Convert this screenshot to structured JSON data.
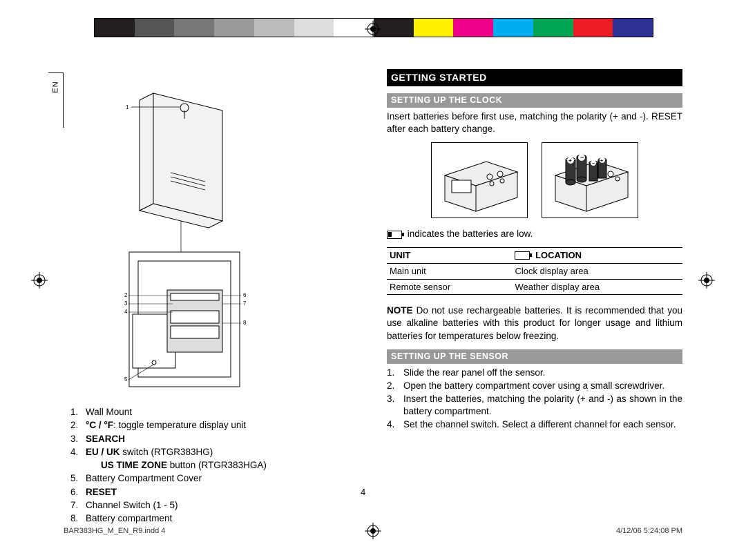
{
  "meta": {
    "lang_tab": "EN",
    "page_number": "4",
    "footer_file": "BAR383HG_M_EN_R9.indd   4",
    "footer_date": "4/12/06   5:24:08 PM"
  },
  "color_bar": [
    "#231f20",
    "#555555",
    "#777777",
    "#999999",
    "#bbbbbb",
    "#dddddd",
    "#ffffff",
    "#231f20",
    "#fff200",
    "#ec008c",
    "#00aeef",
    "#00a651",
    "#ed1c24",
    "#2e3192"
  ],
  "left": {
    "diagram_labels": [
      "1",
      "2",
      "3",
      "4",
      "5",
      "6",
      "7",
      "8"
    ],
    "parts": [
      {
        "n": "1.",
        "text": "Wall Mount",
        "bold": false
      },
      {
        "n": "2.",
        "text": "°C / °F",
        "rest": ": toggle temperature display unit",
        "bold": true
      },
      {
        "n": "3.",
        "text": "SEARCH",
        "bold": true
      },
      {
        "n": "4.",
        "text": "EU / UK",
        "rest": " switch (RTGR383HG)",
        "bold": true
      },
      {
        "n": "",
        "text": "US TIME ZONE",
        "rest": " button (RTGR383HGA)",
        "bold": true,
        "sub": true
      },
      {
        "n": "5.",
        "text": "Battery Compartment Cover",
        "bold": false
      },
      {
        "n": "6.",
        "text": "RESET",
        "bold": true
      },
      {
        "n": "7.",
        "text": "Channel Switch (1 - 5)",
        "bold": false
      },
      {
        "n": "8.",
        "text": "Battery compartment",
        "bold": false
      }
    ]
  },
  "right": {
    "section": "GETTING STARTED",
    "clock_sub": "SETTING UP THE CLOCK",
    "clock_para": "Insert batteries before first use, matching the polarity (+ and -). RESET after each battery change.",
    "low_bat_text": "indicates the batteries are low.",
    "table": {
      "headers": [
        "UNIT",
        "LOCATION"
      ],
      "rows": [
        [
          "Main unit",
          "Clock display area"
        ],
        [
          "Remote sensor",
          "Weather display area"
        ]
      ]
    },
    "note_label": "NOTE",
    "note_text": "  Do not use rechargeable batteries. It is recommended that you use alkaline batteries with this product for longer usage and lithium batteries for temperatures below freezing.",
    "sensor_sub": "SETTING UP THE SENSOR",
    "sensor_steps": [
      {
        "n": "1.",
        "t": "Slide the rear panel off the sensor."
      },
      {
        "n": "2.",
        "t": "Open the battery compartment cover using a small screwdriver."
      },
      {
        "n": "3.",
        "t": "Insert the batteries, matching the polarity (+ and -) as shown in the battery compartment."
      },
      {
        "n": "4.",
        "t": "Set the channel switch. Select a different channel for each sensor."
      }
    ]
  }
}
